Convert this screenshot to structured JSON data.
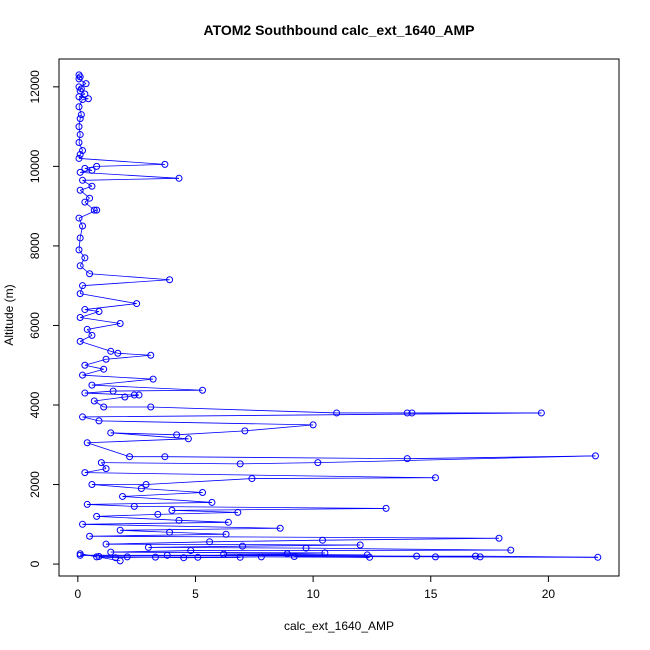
{
  "chart_data": {
    "type": "scatter",
    "title": "ATOM2 Southbound calc_ext_1640_AMP",
    "xlabel": "calc_ext_1640_AMP",
    "ylabel": "Altitude (m)",
    "xlim": [
      -0.8,
      23.0
    ],
    "ylim": [
      -300,
      12700
    ],
    "xticks": [
      0,
      5,
      10,
      15,
      20
    ],
    "yticks": [
      0,
      2000,
      4000,
      6000,
      8000,
      10000,
      12000
    ],
    "series_color": "#0000FF",
    "marker": "open-circle",
    "connected": true,
    "grid": false,
    "points": [
      {
        "x": 0.05,
        "y": 12300
      },
      {
        "x": 0.1,
        "y": 12250
      },
      {
        "x": 0.05,
        "y": 12200
      },
      {
        "x": 0.35,
        "y": 12080
      },
      {
        "x": 0.05,
        "y": 12000
      },
      {
        "x": 0.15,
        "y": 11950
      },
      {
        "x": 0.1,
        "y": 11900
      },
      {
        "x": 0.3,
        "y": 11820
      },
      {
        "x": 0.05,
        "y": 11750
      },
      {
        "x": 0.45,
        "y": 11700
      },
      {
        "x": 0.2,
        "y": 11680
      },
      {
        "x": 0.05,
        "y": 11500
      },
      {
        "x": 0.15,
        "y": 11300
      },
      {
        "x": 0.1,
        "y": 11200
      },
      {
        "x": 0.05,
        "y": 11000
      },
      {
        "x": 0.1,
        "y": 10800
      },
      {
        "x": 0.05,
        "y": 10600
      },
      {
        "x": 0.2,
        "y": 10400
      },
      {
        "x": 0.1,
        "y": 10300
      },
      {
        "x": 0.05,
        "y": 10200
      },
      {
        "x": 3.7,
        "y": 10050
      },
      {
        "x": 0.8,
        "y": 10000
      },
      {
        "x": 0.3,
        "y": 9950
      },
      {
        "x": 0.6,
        "y": 9900
      },
      {
        "x": 0.1,
        "y": 9850
      },
      {
        "x": 4.3,
        "y": 9700
      },
      {
        "x": 0.2,
        "y": 9650
      },
      {
        "x": 0.6,
        "y": 9500
      },
      {
        "x": 0.1,
        "y": 9400
      },
      {
        "x": 0.5,
        "y": 9200
      },
      {
        "x": 0.3,
        "y": 9100
      },
      {
        "x": 0.7,
        "y": 8900
      },
      {
        "x": 0.8,
        "y": 8900
      },
      {
        "x": 0.05,
        "y": 8700
      },
      {
        "x": 0.2,
        "y": 8500
      },
      {
        "x": 0.1,
        "y": 8200
      },
      {
        "x": 0.05,
        "y": 7900
      },
      {
        "x": 0.3,
        "y": 7700
      },
      {
        "x": 0.1,
        "y": 7500
      },
      {
        "x": 0.5,
        "y": 7300
      },
      {
        "x": 3.9,
        "y": 7150
      },
      {
        "x": 0.2,
        "y": 7000
      },
      {
        "x": 0.1,
        "y": 6800
      },
      {
        "x": 2.5,
        "y": 6550
      },
      {
        "x": 0.3,
        "y": 6400
      },
      {
        "x": 0.9,
        "y": 6350
      },
      {
        "x": 0.1,
        "y": 6200
      },
      {
        "x": 1.8,
        "y": 6050
      },
      {
        "x": 0.4,
        "y": 5900
      },
      {
        "x": 0.6,
        "y": 5750
      },
      {
        "x": 0.1,
        "y": 5600
      },
      {
        "x": 1.4,
        "y": 5350
      },
      {
        "x": 1.7,
        "y": 5300
      },
      {
        "x": 3.1,
        "y": 5250
      },
      {
        "x": 1.2,
        "y": 5150
      },
      {
        "x": 0.3,
        "y": 5000
      },
      {
        "x": 1.1,
        "y": 4900
      },
      {
        "x": 0.2,
        "y": 4750
      },
      {
        "x": 3.2,
        "y": 4650
      },
      {
        "x": 0.6,
        "y": 4500
      },
      {
        "x": 5.3,
        "y": 4370
      },
      {
        "x": 1.5,
        "y": 4350
      },
      {
        "x": 0.3,
        "y": 4300
      },
      {
        "x": 2.4,
        "y": 4250
      },
      {
        "x": 2.6,
        "y": 4250
      },
      {
        "x": 2.0,
        "y": 4200
      },
      {
        "x": 0.7,
        "y": 4100
      },
      {
        "x": 1.1,
        "y": 3950
      },
      {
        "x": 3.1,
        "y": 3950
      },
      {
        "x": 11.0,
        "y": 3800
      },
      {
        "x": 14.0,
        "y": 3800
      },
      {
        "x": 14.2,
        "y": 3800
      },
      {
        "x": 19.7,
        "y": 3800
      },
      {
        "x": 0.2,
        "y": 3700
      },
      {
        "x": 0.9,
        "y": 3600
      },
      {
        "x": 10.0,
        "y": 3500
      },
      {
        "x": 7.1,
        "y": 3350
      },
      {
        "x": 4.2,
        "y": 3250
      },
      {
        "x": 1.4,
        "y": 3300
      },
      {
        "x": 4.7,
        "y": 3150
      },
      {
        "x": 0.4,
        "y": 3050
      },
      {
        "x": 2.2,
        "y": 2700
      },
      {
        "x": 3.7,
        "y": 2700
      },
      {
        "x": 14.0,
        "y": 2650
      },
      {
        "x": 22.0,
        "y": 2720
      },
      {
        "x": 10.2,
        "y": 2550
      },
      {
        "x": 6.9,
        "y": 2520
      },
      {
        "x": 1.0,
        "y": 2550
      },
      {
        "x": 1.2,
        "y": 2400
      },
      {
        "x": 0.3,
        "y": 2300
      },
      {
        "x": 15.2,
        "y": 2170
      },
      {
        "x": 7.4,
        "y": 2150
      },
      {
        "x": 2.9,
        "y": 2000
      },
      {
        "x": 0.6,
        "y": 2000
      },
      {
        "x": 2.7,
        "y": 1900
      },
      {
        "x": 5.3,
        "y": 1800
      },
      {
        "x": 1.9,
        "y": 1700
      },
      {
        "x": 5.7,
        "y": 1550
      },
      {
        "x": 0.4,
        "y": 1500
      },
      {
        "x": 2.4,
        "y": 1450
      },
      {
        "x": 13.1,
        "y": 1400
      },
      {
        "x": 4.0,
        "y": 1350
      },
      {
        "x": 6.8,
        "y": 1300
      },
      {
        "x": 3.4,
        "y": 1250
      },
      {
        "x": 0.8,
        "y": 1200
      },
      {
        "x": 4.3,
        "y": 1100
      },
      {
        "x": 6.4,
        "y": 1050
      },
      {
        "x": 0.2,
        "y": 1000
      },
      {
        "x": 8.6,
        "y": 900
      },
      {
        "x": 1.8,
        "y": 850
      },
      {
        "x": 3.9,
        "y": 800
      },
      {
        "x": 6.3,
        "y": 750
      },
      {
        "x": 0.5,
        "y": 700
      },
      {
        "x": 17.9,
        "y": 650
      },
      {
        "x": 10.4,
        "y": 600
      },
      {
        "x": 5.6,
        "y": 560
      },
      {
        "x": 1.2,
        "y": 500
      },
      {
        "x": 12.0,
        "y": 480
      },
      {
        "x": 7.0,
        "y": 450
      },
      {
        "x": 3.0,
        "y": 420
      },
      {
        "x": 9.7,
        "y": 400
      },
      {
        "x": 18.4,
        "y": 350
      },
      {
        "x": 4.8,
        "y": 340
      },
      {
        "x": 1.4,
        "y": 300
      },
      {
        "x": 10.5,
        "y": 280
      },
      {
        "x": 8.9,
        "y": 260
      },
      {
        "x": 6.2,
        "y": 250
      },
      {
        "x": 12.3,
        "y": 230
      },
      {
        "x": 3.8,
        "y": 220
      },
      {
        "x": 0.1,
        "y": 220
      },
      {
        "x": 14.4,
        "y": 200
      },
      {
        "x": 16.9,
        "y": 200
      },
      {
        "x": 22.1,
        "y": 170
      },
      {
        "x": 15.2,
        "y": 180
      },
      {
        "x": 17.1,
        "y": 180
      },
      {
        "x": 9.2,
        "y": 190
      },
      {
        "x": 12.4,
        "y": 170
      },
      {
        "x": 7.8,
        "y": 180
      },
      {
        "x": 5.1,
        "y": 170
      },
      {
        "x": 2.1,
        "y": 180
      },
      {
        "x": 0.9,
        "y": 190
      },
      {
        "x": 4.5,
        "y": 160
      },
      {
        "x": 6.9,
        "y": 170
      },
      {
        "x": 3.3,
        "y": 175
      },
      {
        "x": 1.6,
        "y": 160
      },
      {
        "x": 0.8,
        "y": 180
      },
      {
        "x": 0.1,
        "y": 260
      },
      {
        "x": 1.8,
        "y": 80
      }
    ]
  }
}
